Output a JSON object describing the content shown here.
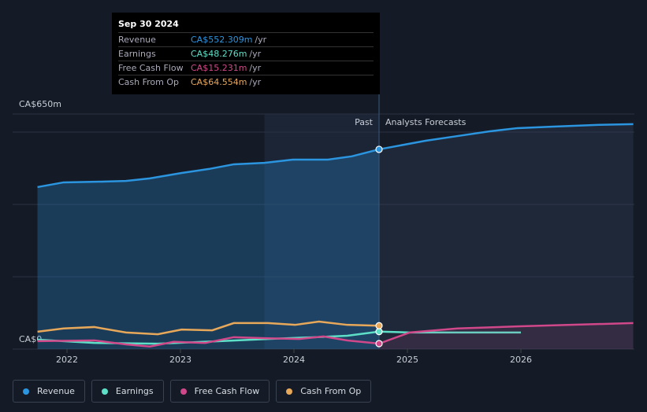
{
  "chart_data": {
    "type": "line",
    "ylim": [
      0,
      650
    ],
    "yticks": [
      {
        "value": 0,
        "label": "CA$0"
      },
      {
        "value": 200,
        "label": null
      },
      {
        "value": 400,
        "label": null
      },
      {
        "value": 600,
        "label": null
      },
      {
        "value": 650,
        "label": "CA$650m"
      }
    ],
    "xlim": [
      2021.5,
      2026.99
    ],
    "xticks": [
      2022,
      2023,
      2024,
      2025,
      2026
    ],
    "past_end": 2024.75,
    "highlight": [
      2023.74,
      2024.75
    ],
    "past_label": "Past",
    "forecast_label": "Analysts Forecasts",
    "grid": true,
    "series": [
      {
        "name": "Revenue",
        "color": "#2b95e0",
        "x": [
          2021.74,
          2021.97,
          2022.31,
          2022.52,
          2022.73,
          2023.01,
          2023.25,
          2023.47,
          2023.74,
          2023.99,
          2024.3,
          2024.51,
          2024.75,
          2025.16,
          2025.44,
          2025.72,
          2025.97,
          2026.27,
          2026.69,
          2026.99
        ],
        "values": [
          448,
          461,
          463,
          465,
          472,
          487,
          498,
          511,
          515,
          524,
          524,
          533,
          552.3,
          576,
          589,
          602,
          611,
          615,
          620,
          622
        ]
      },
      {
        "name": "Earnings",
        "color": "#5ee0c8",
        "x": [
          2021.74,
          2022.24,
          2022.8,
          2023.35,
          2023.77,
          2024.19,
          2024.47,
          2024.75,
          2025.02,
          2026.0
        ],
        "values": [
          26,
          17,
          15,
          22,
          28,
          33,
          37,
          48.3,
          46,
          46
        ]
      },
      {
        "name": "Free Cash Flow",
        "color": "#d0488a",
        "x": [
          2021.74,
          2022.24,
          2022.52,
          2022.73,
          2022.94,
          2023.22,
          2023.47,
          2023.77,
          2024.05,
          2024.26,
          2024.47,
          2024.75,
          2025.02,
          2025.44,
          2025.99,
          2026.99
        ],
        "values": [
          22,
          24,
          13,
          7,
          20,
          17,
          33,
          30,
          28,
          35,
          24,
          15.2,
          46,
          57,
          63,
          72
        ]
      },
      {
        "name": "Cash From Op",
        "color": "#e7a85a",
        "x": [
          2021.74,
          2021.97,
          2022.24,
          2022.52,
          2022.8,
          2023.01,
          2023.28,
          2023.47,
          2023.77,
          2024.01,
          2024.22,
          2024.47,
          2024.75
        ],
        "values": [
          48,
          57,
          61,
          46,
          41,
          54,
          52,
          72,
          72,
          67,
          76,
          67,
          64.6
        ]
      }
    ]
  },
  "tooltip": {
    "date": "Sep 30 2024",
    "unit": "/yr",
    "rows": [
      {
        "label": "Revenue",
        "value": "CA$552.309m"
      },
      {
        "label": "Earnings",
        "value": "CA$48.276m"
      },
      {
        "label": "Free Cash Flow",
        "value": "CA$15.231m"
      },
      {
        "label": "Cash From Op",
        "value": "CA$64.554m"
      }
    ]
  }
}
